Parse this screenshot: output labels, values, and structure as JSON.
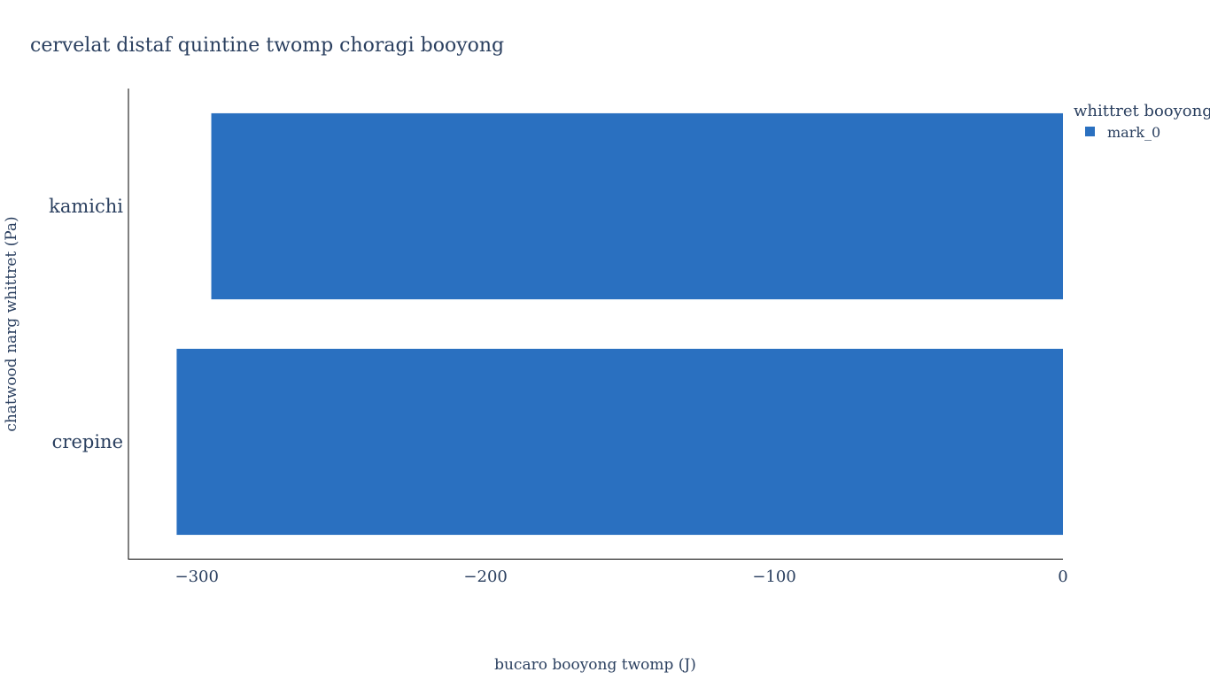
{
  "chart_data": {
    "type": "bar",
    "orientation": "horizontal",
    "title": "cervelat distaf quintine twomp choragi booyong",
    "xlabel": "bucaro booyong twomp (J)",
    "ylabel": "chatwood narg whittret (Pa)",
    "categories": [
      "crepine",
      "kamichi"
    ],
    "series": [
      {
        "name": "mark_0",
        "values": [
          -307,
          -295
        ],
        "color": "#2a70c0"
      }
    ],
    "xlim": [
      -323.7,
      0
    ],
    "x_ticks": [
      -300,
      -200,
      -100,
      0
    ],
    "x_tick_labels": [
      "−300",
      "−200",
      "−100",
      "0"
    ],
    "legend": {
      "title": "whittret booyong",
      "placement": "top-right"
    },
    "grid": false
  }
}
